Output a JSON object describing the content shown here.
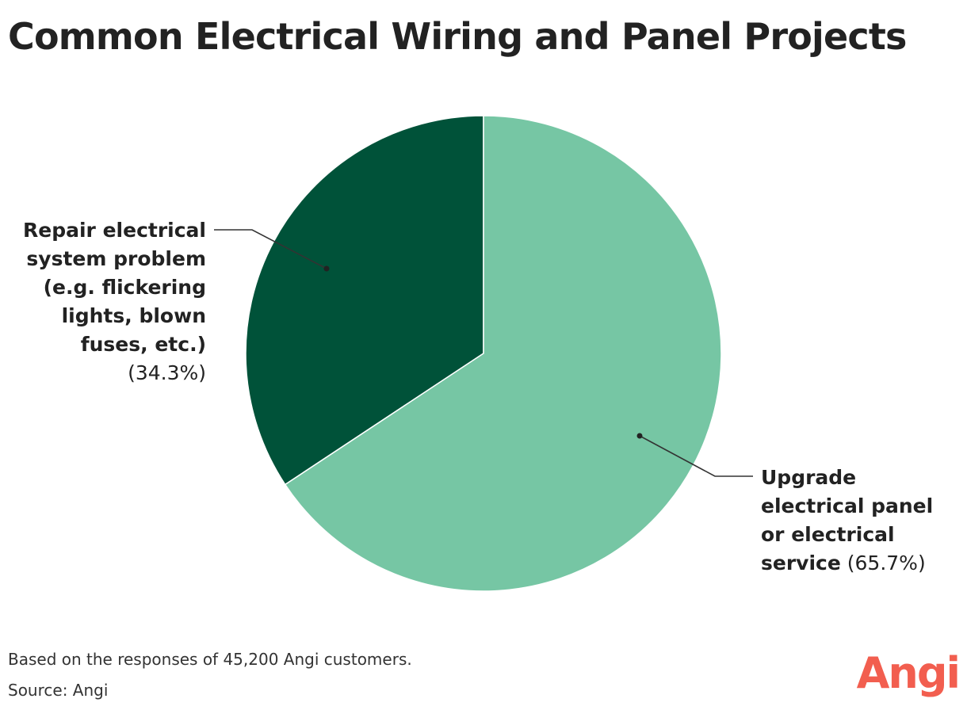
{
  "title": "Common Electrical Wiring and Panel Projects",
  "chart_data": {
    "type": "pie",
    "slices": [
      {
        "label": "Repair electrical system problem (e.g. flickering lights, blown fuses, etc.)",
        "value": 34.3,
        "value_label": "(34.3%)",
        "color": "#005239"
      },
      {
        "label": "Upgrade electrical panel or electrical service",
        "value": 65.7,
        "value_label": "(65.7%)",
        "color": "#76c6a4"
      }
    ],
    "start_angle": "12 o'clock",
    "direction": "counter-clockwise from top for first slice",
    "legend": "leader-line labels"
  },
  "footer": {
    "note": "Based on the responses of 45,200 Angi customers.",
    "source": "Source: Angi"
  },
  "brand": {
    "logo_text": "Angi",
    "color": "#f25e4f"
  }
}
